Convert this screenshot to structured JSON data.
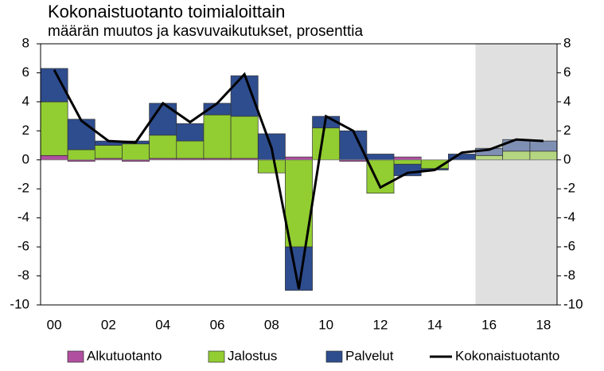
{
  "chart_data": {
    "type": "bar",
    "title": "Kokonaistuotanto toimialoittain",
    "subtitle": "määrän muutos ja kasvuvaikutukset,  prosenttia",
    "categories": [
      "00",
      null,
      "02",
      null,
      "04",
      null,
      "06",
      null,
      "08",
      null,
      "10",
      null,
      "12",
      null,
      "14",
      null,
      "16",
      null,
      "18"
    ],
    "series": [
      {
        "name": "Alkutuotanto",
        "color": "#b04fa0",
        "values": [
          0.3,
          -0.1,
          0.1,
          -0.1,
          0.1,
          0.1,
          0.1,
          0.1,
          0.0,
          0.2,
          0.0,
          -0.1,
          0.0,
          0.2,
          0.0,
          0.0,
          0.0,
          0.0,
          0.0
        ]
      },
      {
        "name": "Jalostus",
        "color": "#92cd32",
        "values": [
          3.7,
          0.7,
          0.9,
          1.1,
          1.6,
          1.2,
          3.0,
          2.9,
          -0.9,
          -6.0,
          2.2,
          0.0,
          -2.3,
          -0.3,
          -0.6,
          0.0,
          0.3,
          0.6,
          0.6
        ]
      },
      {
        "name": "Palvelut",
        "color": "#2e4d8e",
        "values": [
          2.3,
          2.1,
          0.3,
          0.2,
          2.2,
          1.2,
          0.8,
          2.8,
          1.8,
          -3.0,
          0.8,
          2.0,
          0.4,
          -0.8,
          -0.1,
          0.4,
          0.5,
          0.8,
          0.7
        ]
      },
      {
        "name": "Kokonaistuotanto",
        "type": "line",
        "color": "#000000",
        "values": [
          6.2,
          2.7,
          1.3,
          1.2,
          3.9,
          2.6,
          3.9,
          5.9,
          0.8,
          -8.9,
          3.0,
          2.0,
          -1.9,
          -0.9,
          -0.7,
          0.5,
          0.7,
          1.4,
          1.3
        ]
      }
    ],
    "ylim": [
      -10,
      8
    ],
    "yticks": [
      -10,
      -8,
      -6,
      -4,
      -2,
      0,
      2,
      4,
      6,
      8
    ],
    "y2lim": [
      -10,
      8
    ],
    "y2ticks": [
      -10,
      -8,
      -6,
      -4,
      -2,
      0,
      2,
      4,
      6,
      8
    ],
    "legend": "bottom"
  }
}
